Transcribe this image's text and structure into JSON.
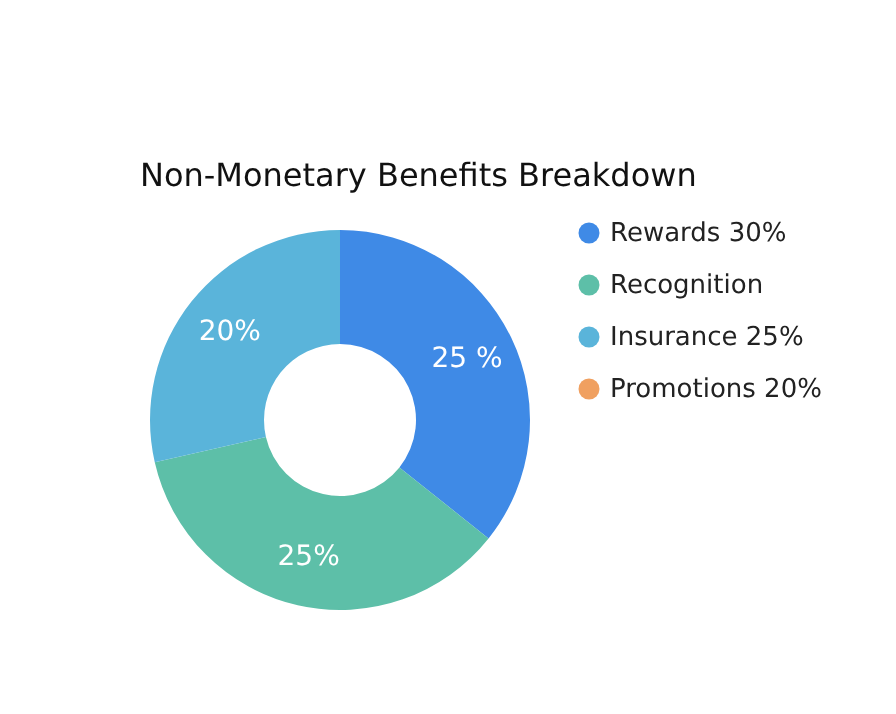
{
  "chart_data": {
    "type": "donut",
    "title": "Non-Monetary Benefits Breakdown",
    "categories": [
      "Rewards  30%",
      "Recognition",
      "Insurance 25%",
      "Promotions 20%"
    ],
    "values": [
      25,
      25,
      20,
      null
    ],
    "colors": [
      "#3f8ae6",
      "#5dbfa8",
      "#5ab4da",
      "#f0a060"
    ],
    "value_labels": [
      "25 %",
      "25%",
      "20%",
      null
    ],
    "legend": "right"
  }
}
